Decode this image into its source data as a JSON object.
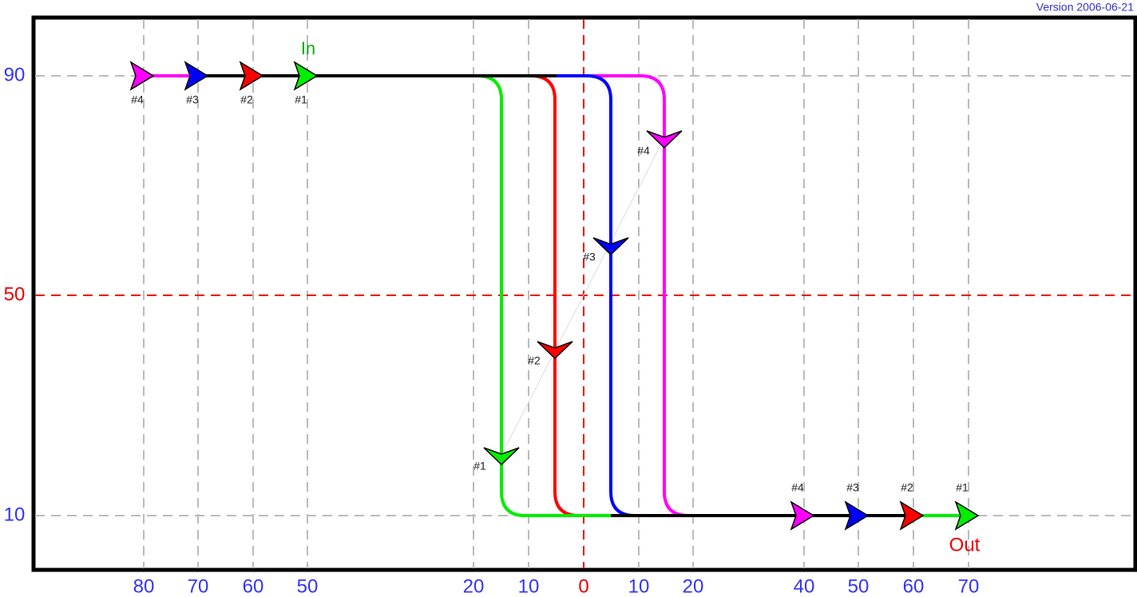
{
  "version": "Version 2006-06-21",
  "y_labels": [
    "90",
    "50",
    "10"
  ],
  "x_labels": [
    "80",
    "70",
    "60",
    "50",
    "20",
    "10",
    "0",
    "10",
    "20",
    "40",
    "50",
    "60",
    "70"
  ],
  "in_label": "In",
  "out_label": "Out",
  "start_markers": [
    "#4",
    "#3",
    "#2",
    "#1"
  ],
  "turn_markers": [
    "#1",
    "#2",
    "#3",
    "#4"
  ],
  "end_markers": [
    "#4",
    "#3",
    "#2",
    "#1"
  ]
}
